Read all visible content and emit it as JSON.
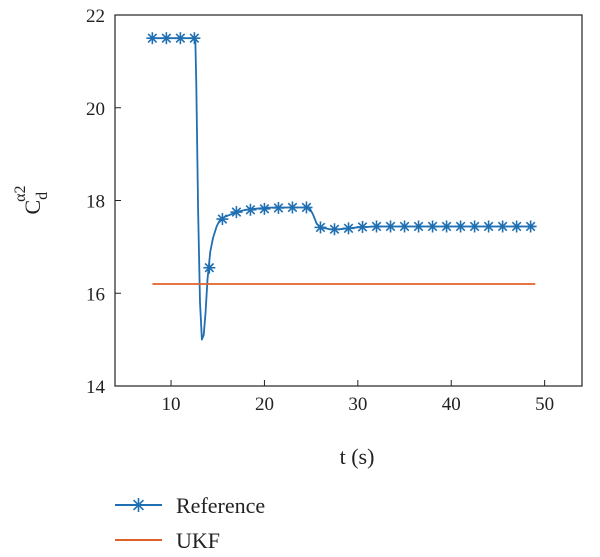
{
  "chart_data": {
    "type": "line",
    "title": "",
    "xlabel": "t (s)",
    "ylabel": {
      "base": "C",
      "sub": "d",
      "sup": "α2"
    },
    "xlim": [
      4,
      54
    ],
    "ylim": [
      14,
      22
    ],
    "xticks": [
      10,
      20,
      30,
      40,
      50
    ],
    "yticks": [
      14,
      16,
      18,
      20,
      22
    ],
    "grid": false,
    "legend_position": "bottom-left-below",
    "series": [
      {
        "name": "Reference",
        "color": "#1f6fb2",
        "marker": "asterisk",
        "x": [
          8.0,
          9.0,
          10.0,
          11.0,
          12.0,
          12.6,
          12.7,
          12.9,
          13.1,
          13.3,
          13.5,
          13.7,
          13.9,
          14.2,
          14.5,
          14.9,
          15.3,
          15.8,
          16.4,
          17.0,
          18.0,
          19.0,
          20.0,
          21.0,
          22.0,
          23.0,
          24.0,
          24.8,
          25.2,
          25.6,
          26.0,
          26.5,
          27.0,
          28.0,
          29.0,
          30.0,
          31.0,
          32.0,
          33.0,
          34.0,
          35.0,
          36.0,
          37.0,
          38.0,
          39.0,
          40.0,
          41.0,
          42.0,
          43.0,
          44.0,
          45.0,
          46.0,
          47.0,
          48.0,
          49.0
        ],
        "y": [
          21.5,
          21.5,
          21.5,
          21.5,
          21.5,
          21.5,
          20.5,
          17.8,
          15.8,
          15.0,
          15.1,
          15.6,
          16.3,
          16.9,
          17.2,
          17.45,
          17.6,
          17.65,
          17.7,
          17.75,
          17.8,
          17.82,
          17.84,
          17.85,
          17.85,
          17.85,
          17.85,
          17.85,
          17.7,
          17.5,
          17.42,
          17.4,
          17.38,
          17.38,
          17.4,
          17.42,
          17.43,
          17.44,
          17.44,
          17.44,
          17.44,
          17.44,
          17.44,
          17.44,
          17.44,
          17.44,
          17.44,
          17.44,
          17.44,
          17.44,
          17.44,
          17.44,
          17.44,
          17.44,
          17.44
        ],
        "marker_x": [
          8.0,
          9.5,
          11.0,
          12.5,
          14.1,
          15.5,
          17.0,
          18.5,
          20.0,
          21.5,
          23.0,
          24.5,
          26.0,
          27.5,
          29.0,
          30.5,
          32.0,
          33.5,
          35.0,
          36.5,
          38.0,
          39.5,
          41.0,
          42.5,
          44.0,
          45.5,
          47.0,
          48.5
        ],
        "marker_y": [
          21.5,
          21.5,
          21.5,
          21.5,
          16.55,
          17.6,
          17.75,
          17.8,
          17.82,
          17.84,
          17.85,
          17.85,
          17.42,
          17.38,
          17.4,
          17.43,
          17.44,
          17.44,
          17.44,
          17.44,
          17.44,
          17.44,
          17.44,
          17.44,
          17.44,
          17.44,
          17.44,
          17.44
        ]
      },
      {
        "name": "UKF",
        "color": "#e0622a",
        "marker": "none",
        "x": [
          8.0,
          49.0
        ],
        "y": [
          16.2,
          16.2
        ]
      }
    ]
  }
}
